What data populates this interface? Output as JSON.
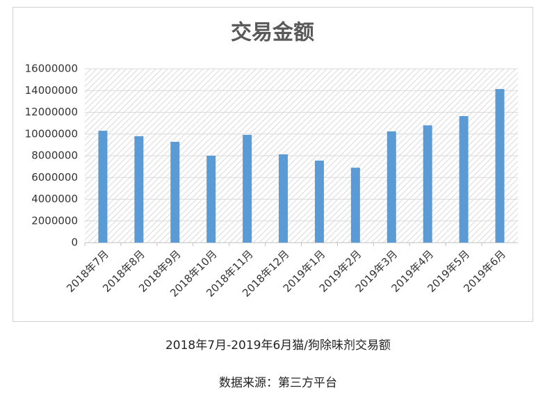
{
  "chart_data": {
    "type": "bar",
    "title": "交易金额",
    "categories": [
      "2018年7月",
      "2018年8月",
      "2018年9月",
      "2018年10月",
      "2018年11月",
      "2018年12月",
      "2019年1月",
      "2019年2月",
      "2019年3月",
      "2019年4月",
      "2019年5月",
      "2019年6月"
    ],
    "values": [
      10300000,
      9800000,
      9280000,
      8000000,
      9920000,
      8130000,
      7550000,
      6900000,
      10240000,
      10800000,
      11650000,
      14140000
    ],
    "color": "#5b9bd5",
    "ylim": [
      0,
      16000000
    ],
    "yticks": [
      0,
      2000000,
      4000000,
      6000000,
      8000000,
      10000000,
      12000000,
      14000000,
      16000000
    ],
    "grid": true,
    "caption": "2018年7月-2019年6月猫/狗除味剂交易额",
    "source": "数据来源：第三方平台"
  }
}
